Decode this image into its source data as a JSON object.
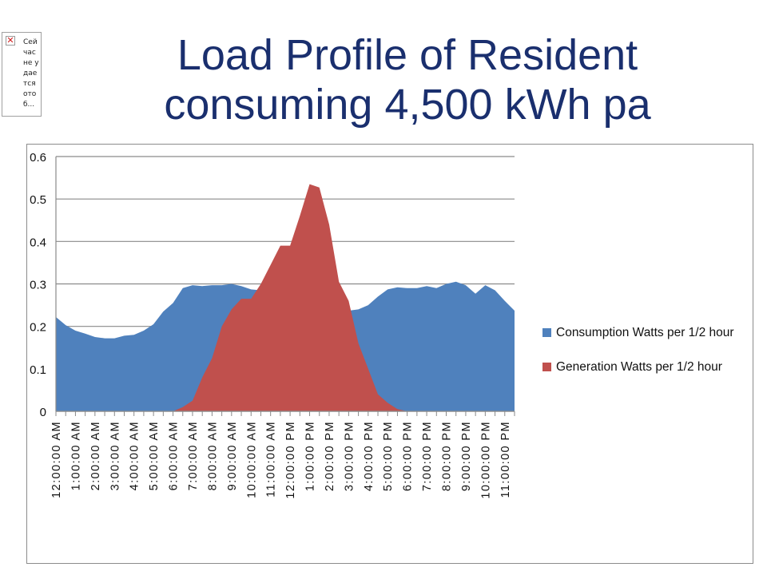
{
  "broken_image": {
    "icon": "broken-image-icon",
    "alt_text": "Сейчас не удается отоб..."
  },
  "title": {
    "line1": "Load Profile of Resident",
    "line2": "consuming 4,500 kWh pa"
  },
  "chart_data": {
    "type": "area",
    "title": "Load Profile of Resident consuming 4,500 kWh pa",
    "xlabel": "",
    "ylabel": "",
    "ylim": [
      0,
      0.6
    ],
    "yticks": [
      "0",
      "0.1",
      "0.2",
      "0.3",
      "0.4",
      "0.5",
      "0.6"
    ],
    "ytick_values": [
      0,
      0.1,
      0.2,
      0.3,
      0.4,
      0.5,
      0.6
    ],
    "grid": true,
    "legend": "right",
    "x_tick_labels": [
      "12:00:00 AM",
      "1:00:00 AM",
      "2:00:00 AM",
      "3:00:00 AM",
      "4:00:00 AM",
      "5:00:00 AM",
      "6:00:00 AM",
      "7:00:00 AM",
      "8:00:00 AM",
      "9:00:00 AM",
      "10:00:00 AM",
      "11:00:00 AM",
      "12:00:00 PM",
      "1:00:00 PM",
      "2:00:00 PM",
      "3:00:00 PM",
      "4:00:00 PM",
      "5:00:00 PM",
      "6:00:00 PM",
      "7:00:00 PM",
      "8:00:00 PM",
      "9:00:00 PM",
      "10:00:00 PM",
      "11:00:00 PM"
    ],
    "x_interval": "1/2 hour",
    "series": [
      {
        "name": "Consumption  Watts per 1/2 hour",
        "color": "#4f81bd",
        "values": [
          0.222,
          0.203,
          0.19,
          0.183,
          0.175,
          0.172,
          0.172,
          0.178,
          0.18,
          0.19,
          0.205,
          0.235,
          0.255,
          0.29,
          0.297,
          0.295,
          0.297,
          0.297,
          0.3,
          0.295,
          0.287,
          0.285,
          0.27,
          0.26,
          0.252,
          0.245,
          0.24,
          0.235,
          0.237,
          0.238,
          0.237,
          0.24,
          0.25,
          0.27,
          0.287,
          0.292,
          0.29,
          0.29,
          0.295,
          0.29,
          0.3,
          0.305,
          0.297,
          0.277,
          0.297,
          0.285,
          0.26,
          0.237
        ]
      },
      {
        "name": "Generation Watts per 1/2 hour",
        "color": "#c0504d",
        "values": [
          0,
          0,
          0,
          0,
          0,
          0,
          0,
          0,
          0,
          0,
          0,
          0,
          0,
          0.01,
          0.025,
          0.08,
          0.125,
          0.2,
          0.24,
          0.265,
          0.265,
          0.3,
          0.345,
          0.39,
          0.39,
          0.46,
          0.535,
          0.527,
          0.44,
          0.305,
          0.26,
          0.16,
          0.1,
          0.04,
          0.02,
          0.005,
          0,
          0,
          0,
          0,
          0,
          0,
          0,
          0,
          0,
          0,
          0,
          0
        ]
      }
    ]
  }
}
